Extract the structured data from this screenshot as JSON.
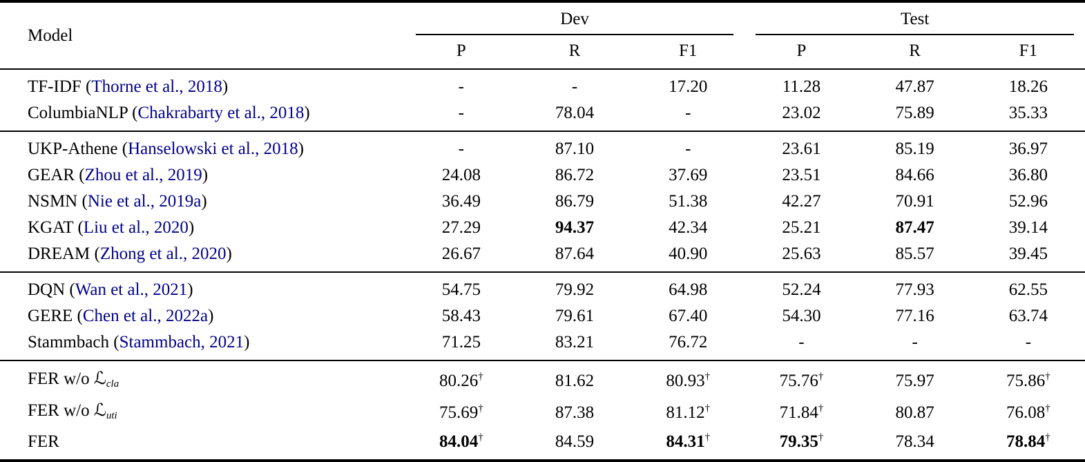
{
  "colors": {
    "citation_link": "#00008B",
    "text": "#000000",
    "background": "#ffffff",
    "rule": "#000000"
  },
  "table": {
    "model_header": "Model",
    "group_headers": [
      {
        "label": "Dev"
      },
      {
        "label": "Test"
      }
    ],
    "sub_headers": [
      "P",
      "R",
      "F1",
      "P",
      "R",
      "F1"
    ],
    "dagger_symbol": "†",
    "row_groups": [
      [
        {
          "name": [
            {
              "text": "TF-IDF ("
            },
            {
              "text": "Thorne et al., 2018",
              "style": "cite"
            },
            {
              "text": ")"
            }
          ],
          "cells": [
            {
              "text": "-"
            },
            {
              "text": "-"
            },
            {
              "text": "17.20"
            },
            {
              "text": "11.28"
            },
            {
              "text": "47.87"
            },
            {
              "text": "18.26"
            }
          ]
        },
        {
          "name": [
            {
              "text": "ColumbiaNLP ("
            },
            {
              "text": "Chakrabarty et al., 2018",
              "style": "cite"
            },
            {
              "text": ")"
            }
          ],
          "cells": [
            {
              "text": "-"
            },
            {
              "text": "78.04"
            },
            {
              "text": "-"
            },
            {
              "text": "23.02"
            },
            {
              "text": "75.89"
            },
            {
              "text": "35.33"
            }
          ]
        }
      ],
      [
        {
          "name": [
            {
              "text": "UKP-Athene ("
            },
            {
              "text": "Hanselowski et al., 2018",
              "style": "cite"
            },
            {
              "text": ")"
            }
          ],
          "cells": [
            {
              "text": "-"
            },
            {
              "text": "87.10"
            },
            {
              "text": "-"
            },
            {
              "text": "23.61"
            },
            {
              "text": "85.19"
            },
            {
              "text": "36.97"
            }
          ]
        },
        {
          "name": [
            {
              "text": "GEAR ("
            },
            {
              "text": "Zhou et al., 2019",
              "style": "cite"
            },
            {
              "text": ")"
            }
          ],
          "cells": [
            {
              "text": "24.08"
            },
            {
              "text": "86.72"
            },
            {
              "text": "37.69"
            },
            {
              "text": "23.51"
            },
            {
              "text": "84.66"
            },
            {
              "text": "36.80"
            }
          ]
        },
        {
          "name": [
            {
              "text": "NSMN ("
            },
            {
              "text": "Nie et al., 2019a",
              "style": "cite"
            },
            {
              "text": ")"
            }
          ],
          "cells": [
            {
              "text": "36.49"
            },
            {
              "text": "86.79"
            },
            {
              "text": "51.38"
            },
            {
              "text": "42.27"
            },
            {
              "text": "70.91"
            },
            {
              "text": "52.96"
            }
          ]
        },
        {
          "name": [
            {
              "text": "KGAT ("
            },
            {
              "text": "Liu et al., 2020",
              "style": "cite"
            },
            {
              "text": ")"
            }
          ],
          "cells": [
            {
              "text": "27.29"
            },
            {
              "text": "94.37",
              "bold": true
            },
            {
              "text": "42.34"
            },
            {
              "text": "25.21"
            },
            {
              "text": "87.47",
              "bold": true
            },
            {
              "text": "39.14"
            }
          ]
        },
        {
          "name": [
            {
              "text": "DREAM ("
            },
            {
              "text": "Zhong et al., 2020",
              "style": "cite"
            },
            {
              "text": ")"
            }
          ],
          "cells": [
            {
              "text": "26.67"
            },
            {
              "text": "87.64"
            },
            {
              "text": "40.90"
            },
            {
              "text": "25.63"
            },
            {
              "text": "85.57"
            },
            {
              "text": "39.45"
            }
          ]
        }
      ],
      [
        {
          "name": [
            {
              "text": "DQN ("
            },
            {
              "text": "Wan et al., 2021",
              "style": "cite"
            },
            {
              "text": ")"
            }
          ],
          "cells": [
            {
              "text": "54.75"
            },
            {
              "text": "79.92"
            },
            {
              "text": "64.98"
            },
            {
              "text": "52.24"
            },
            {
              "text": "77.93"
            },
            {
              "text": "62.55"
            }
          ]
        },
        {
          "name": [
            {
              "text": "GERE ("
            },
            {
              "text": "Chen et al., 2022a",
              "style": "cite"
            },
            {
              "text": ")"
            }
          ],
          "cells": [
            {
              "text": "58.43"
            },
            {
              "text": "79.61"
            },
            {
              "text": "67.40"
            },
            {
              "text": "54.30"
            },
            {
              "text": "77.16"
            },
            {
              "text": "63.74"
            }
          ]
        },
        {
          "name": [
            {
              "text": "Stammbach ("
            },
            {
              "text": "Stammbach, 2021",
              "style": "cite"
            },
            {
              "text": ")"
            }
          ],
          "cells": [
            {
              "text": "71.25"
            },
            {
              "text": "83.21"
            },
            {
              "text": "76.72"
            },
            {
              "text": "-"
            },
            {
              "text": "-"
            },
            {
              "text": "-"
            }
          ]
        }
      ],
      [
        {
          "name": [
            {
              "text": "FER w/o "
            },
            {
              "text": "ℒ",
              "style": "script"
            },
            {
              "text": "cla",
              "style": "sub"
            }
          ],
          "cells": [
            {
              "text": "80.26",
              "dagger": true
            },
            {
              "text": "81.62"
            },
            {
              "text": "80.93",
              "dagger": true
            },
            {
              "text": "75.76",
              "dagger": true
            },
            {
              "text": "75.97"
            },
            {
              "text": "75.86",
              "dagger": true
            }
          ]
        },
        {
          "name": [
            {
              "text": "FER w/o "
            },
            {
              "text": "ℒ",
              "style": "script"
            },
            {
              "text": "uti",
              "style": "sub"
            }
          ],
          "cells": [
            {
              "text": "75.69",
              "dagger": true
            },
            {
              "text": "87.38"
            },
            {
              "text": "81.12",
              "dagger": true
            },
            {
              "text": "71.84",
              "dagger": true
            },
            {
              "text": "80.87"
            },
            {
              "text": "76.08",
              "dagger": true
            }
          ]
        },
        {
          "name": [
            {
              "text": "FER"
            }
          ],
          "cells": [
            {
              "text": "84.04",
              "bold": true,
              "dagger": true
            },
            {
              "text": "84.59"
            },
            {
              "text": "84.31",
              "bold": true,
              "dagger": true
            },
            {
              "text": "79.35",
              "bold": true,
              "dagger": true
            },
            {
              "text": "78.34"
            },
            {
              "text": "78.84",
              "bold": true,
              "dagger": true
            }
          ]
        }
      ]
    ]
  }
}
